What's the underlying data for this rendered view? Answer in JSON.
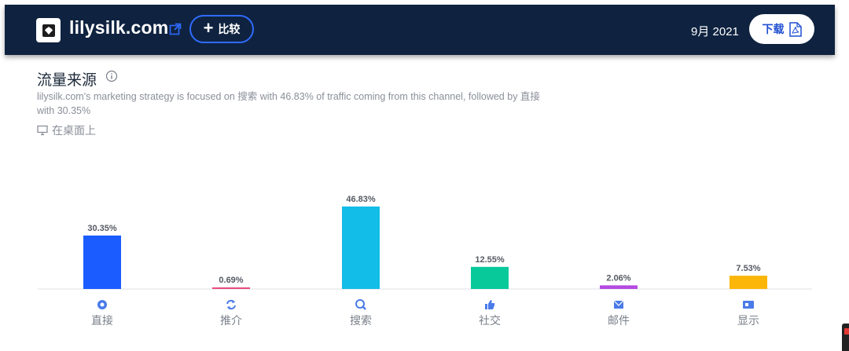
{
  "header": {
    "site_name": "lilysilk.com",
    "compare_label": "比较",
    "date": "9月 2021",
    "download_label": "下载",
    "icons": [
      "site-favicon",
      "external-link-icon",
      "plus-icon",
      "pdf-icon"
    ],
    "colors": {
      "bar_bg": "#0f2340",
      "accent": "#2f6bff"
    }
  },
  "section": {
    "title": "流量来源",
    "description": "lilysilk.com's marketing strategy is focused on 搜索 with 46.83% of traffic coming from this channel, followed by 直接 with 30.35%",
    "device": "在桌面上"
  },
  "chart_data": {
    "type": "bar",
    "categories": [
      "直接",
      "推介",
      "搜索",
      "社交",
      "邮件",
      "显示"
    ],
    "values": [
      30.35,
      0.69,
      46.83,
      12.55,
      2.06,
      7.53
    ],
    "labels": [
      "30.35%",
      "0.69%",
      "46.83%",
      "12.55%",
      "2.06%",
      "7.53%"
    ],
    "colors": [
      "#1a5cff",
      "#e84a7f",
      "#12bde8",
      "#08c99a",
      "#b44be1",
      "#fbb609"
    ],
    "icons": [
      "direct-icon",
      "referral-icon",
      "search-icon",
      "social-icon",
      "mail-icon",
      "display-icon"
    ],
    "title": "流量来源",
    "xlabel": "",
    "ylabel": "",
    "ylim": [
      0,
      46.83
    ],
    "grid": false,
    "legend": "none"
  }
}
